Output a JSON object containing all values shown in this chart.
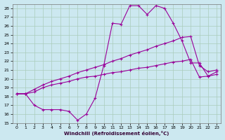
{
  "background_color": "#cce8f0",
  "line_color": "#990099",
  "grid_color": "#aaccbb",
  "xlabel": "Windchill (Refroidissement éolien,°C)",
  "xlim": [
    -0.5,
    23.5
  ],
  "ylim": [
    15,
    28.5
  ],
  "yticks": [
    15,
    16,
    17,
    18,
    19,
    20,
    21,
    22,
    23,
    24,
    25,
    26,
    27,
    28
  ],
  "xticks": [
    0,
    1,
    2,
    3,
    4,
    5,
    6,
    7,
    8,
    9,
    10,
    11,
    12,
    13,
    14,
    15,
    16,
    17,
    18,
    19,
    20,
    21,
    22,
    23
  ],
  "series": [
    {
      "x": [
        0,
        1,
        2,
        3,
        4,
        5,
        6,
        7,
        8,
        9,
        10,
        11,
        12,
        13,
        14,
        15,
        16,
        17,
        18,
        19,
        20,
        21,
        22,
        23
      ],
      "y": [
        18.3,
        18.3,
        18.5,
        19.0,
        19.3,
        19.5,
        19.7,
        20.0,
        20.2,
        20.3,
        20.5,
        20.7,
        20.8,
        21.0,
        21.2,
        21.3,
        21.5,
        21.7,
        21.9,
        22.0,
        22.2,
        20.2,
        20.3,
        20.5
      ]
    },
    {
      "x": [
        0,
        1,
        2,
        3,
        4,
        5,
        6,
        7,
        8,
        9,
        10,
        11,
        12,
        13,
        14,
        15,
        16,
        17,
        18,
        19,
        20,
        21,
        22,
        23
      ],
      "y": [
        18.3,
        18.3,
        18.8,
        19.3,
        19.7,
        20.0,
        20.3,
        20.7,
        21.0,
        21.3,
        21.6,
        22.0,
        22.3,
        22.7,
        23.0,
        23.3,
        23.7,
        24.0,
        24.3,
        24.7,
        24.8,
        21.5,
        20.8,
        21.0
      ]
    },
    {
      "x": [
        0,
        1,
        2,
        3,
        4,
        5,
        6,
        7,
        8,
        9,
        10,
        11,
        12,
        13,
        14,
        15,
        16,
        17,
        18,
        19,
        20,
        21,
        22,
        23
      ],
      "y": [
        18.3,
        18.3,
        17.0,
        16.5,
        16.5,
        16.5,
        16.3,
        15.3,
        16.0,
        17.8,
        21.5,
        26.3,
        26.2,
        28.3,
        28.3,
        27.3,
        28.3,
        28.0,
        26.3,
        24.3,
        21.8,
        21.8,
        20.3,
        20.8
      ]
    }
  ]
}
